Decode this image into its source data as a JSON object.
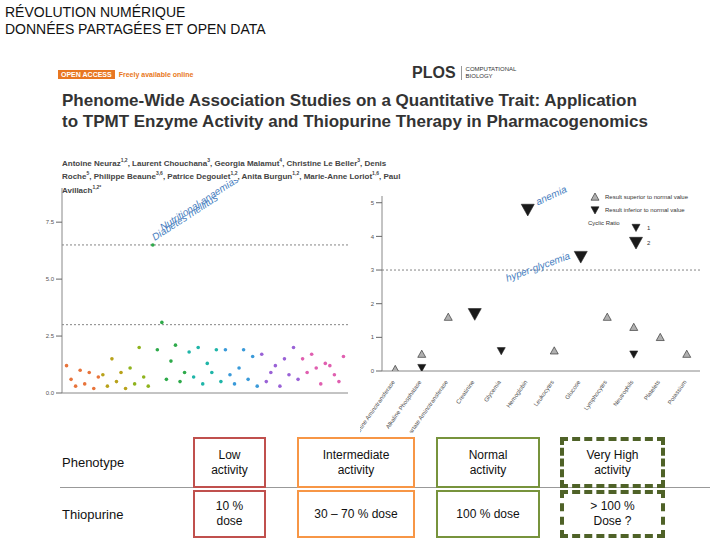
{
  "slide": {
    "title_lines": [
      "RÉVOLUTION NUMÉRIQUE",
      "DONNÉES PARTAGÉES ET OPEN DATA"
    ]
  },
  "paper": {
    "badge": "OPEN ACCESS",
    "badge_note": "Freely available online",
    "journal": "PLOS",
    "journal_sub": [
      "COMPUTATIONAL",
      "BIOLOGY"
    ],
    "title": "Phenome-Wide Association Studies on a Quantitative Trait: Application to TPMT Enzyme Activity and Thiopurine Therapy in Pharmacogenomics",
    "authors": [
      {
        "name": "Antoine Neuraz",
        "sup": "1,2"
      },
      {
        "name": "Laurent Chouchana",
        "sup": "3"
      },
      {
        "name": "Georgia Malamut",
        "sup": "4"
      },
      {
        "name": "Christine Le Beller",
        "sup": "3"
      },
      {
        "name": "Denis Roche",
        "sup": "5"
      },
      {
        "name": "Philippe Beaune",
        "sup": "3,6"
      },
      {
        "name": "Patrice Degoulet",
        "sup": "1,2"
      },
      {
        "name": "Anita Burgun",
        "sup": "1,2"
      },
      {
        "name": "Marie-Anne Loriot",
        "sup": "1,6"
      },
      {
        "name": "Paul Avillach",
        "sup": "1,2*"
      }
    ]
  },
  "chart_data": [
    {
      "type": "scatter",
      "xlim": [
        0,
        63
      ],
      "ylim": [
        0,
        9
      ],
      "yticks": [
        {
          "value": 0,
          "label": "0.0"
        },
        {
          "value": 2.5,
          "label": "2.5"
        },
        {
          "value": 5,
          "label": "5.0"
        },
        {
          "value": 7.5,
          "label": "7.5"
        }
      ],
      "tick_labels": "y",
      "thresholds": [
        6.5,
        3
      ],
      "annotations": [
        {
          "text": "Diabetes mellitus",
          "x": 20,
          "y": 6.5
        },
        {
          "text": "Nutritional anaemias",
          "x": 20,
          "y": 6.5
        }
      ],
      "series": [
        {
          "color": "#e8743b",
          "x": [
            1,
            2,
            3,
            4,
            5,
            6,
            7,
            8
          ],
          "values": [
            1.2,
            0.6,
            0.3,
            1.0,
            0.4,
            0.9,
            0.2,
            0.7
          ]
        },
        {
          "color": "#b8a21a",
          "x": [
            9,
            10,
            11,
            12,
            13,
            14
          ],
          "values": [
            0.8,
            0.3,
            1.5,
            0.5,
            0.9,
            0.2
          ]
        },
        {
          "color": "#8fb31d",
          "x": [
            15,
            16,
            17,
            18,
            19
          ],
          "values": [
            1.1,
            0.4,
            2.0,
            0.7,
            0.3
          ]
        },
        {
          "color": "#2eaa4a",
          "x": [
            20,
            21,
            22,
            23,
            24,
            25,
            26,
            27
          ],
          "values": [
            6.5,
            1.9,
            3.1,
            0.6,
            1.4,
            2.1,
            0.5,
            0.9
          ]
        },
        {
          "color": "#1fb5a8",
          "x": [
            28,
            29,
            30,
            31,
            32,
            33,
            34,
            35
          ],
          "values": [
            1.8,
            0.7,
            2.0,
            0.4,
            1.3,
            0.9,
            1.9,
            0.5
          ]
        },
        {
          "color": "#3a9ad9",
          "x": [
            36,
            37,
            38,
            39,
            40,
            41,
            42,
            43
          ],
          "values": [
            1.9,
            0.8,
            0.4,
            1.1,
            1.9,
            0.6,
            1.6,
            0.3
          ]
        },
        {
          "color": "#9a62d6",
          "x": [
            44,
            45,
            46,
            47,
            48,
            49,
            50,
            51,
            52
          ],
          "values": [
            1.7,
            0.5,
            0.9,
            1.2,
            0.3,
            1.5,
            0.8,
            2.0,
            0.6
          ]
        },
        {
          "color": "#e05fb0",
          "x": [
            53,
            54,
            55,
            56,
            57,
            58,
            59,
            60,
            61,
            62
          ],
          "values": [
            1.5,
            0.9,
            1.7,
            1.1,
            0.4,
            1.3,
            1.2,
            0.8,
            0.5,
            1.6
          ]
        }
      ]
    },
    {
      "type": "scatter",
      "categories": [
        "Alanine Aminotransferase",
        "Alkaline Phosphatase",
        "Aspartate Aminotransferase",
        "Creatinine",
        "Glycemia",
        "Hemoglobin",
        "Leukocytes",
        "Glucose",
        "Lymphocytes",
        "Neutrophils",
        "Platelets",
        "Potassium"
      ],
      "ylim": [
        0,
        5.2
      ],
      "yticks": [
        0,
        1,
        2,
        3,
        4,
        5
      ],
      "thresholds": [
        3
      ],
      "series": [
        {
          "name": "Result superior to normal value",
          "marker": "triangle-up",
          "color": "#b0b0b0",
          "x": [
            0,
            1,
            2,
            6,
            8,
            9,
            10,
            11
          ],
          "values": [
            0.05,
            0.5,
            1.6,
            0.6,
            1.6,
            1.3,
            1.0,
            0.5
          ],
          "sizes": [
            1,
            1,
            1,
            1,
            1,
            1,
            1,
            1
          ]
        },
        {
          "name": "Result inferior to normal value",
          "marker": "triangle-down",
          "color": "#1a1a1a",
          "x": [
            1,
            3,
            4,
            5,
            7,
            9
          ],
          "values": [
            0.1,
            1.7,
            0.6,
            4.8,
            3.4,
            0.5
          ],
          "sizes": [
            1,
            2,
            1,
            2,
            2,
            1
          ]
        }
      ],
      "size_legend": {
        "title": "Cyclic Ratio",
        "values": [
          1,
          2
        ]
      },
      "annotations": [
        {
          "text": "anemia",
          "x": 5,
          "y": 4.8
        },
        {
          "text": "hyper-glycemia",
          "x": 7,
          "y": 3.4
        }
      ]
    }
  ],
  "table": {
    "rows": [
      [
        "Phenotype",
        "Low activity",
        "Intermediate activity",
        "Normal activity",
        "Very High activity"
      ],
      [
        "Thiopurine",
        "10 % dose",
        "30 – 70 % dose",
        "100 % dose",
        "> 100 % Dose ?"
      ]
    ],
    "box_colors": [
      "#c0504d",
      "#f79646",
      "#77933c",
      "#4f6228"
    ],
    "box_styles": [
      "solid",
      "solid",
      "solid",
      "dashed"
    ]
  }
}
